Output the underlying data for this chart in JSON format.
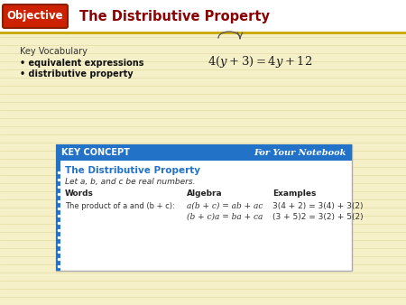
{
  "bg_color": "#f5f0c8",
  "header_bg": "#ffffff",
  "header_line_color": "#c8a000",
  "title_text": "The Distributive Property",
  "title_color": "#8b0000",
  "objective_btn_color": "#cc2200",
  "objective_btn_border": "#8b2000",
  "objective_text": "Objective",
  "objective_text_color": "#ffffff",
  "kv_label": "Key Vocabulary",
  "kv_items": [
    "equivalent expressions",
    "distributive property"
  ],
  "kv_color": "#333333",
  "kv_bold_color": "#111111",
  "box_bg": "#ffffff",
  "box_border_color": "#aaaaaa",
  "box_header_bg": "#2272c8",
  "box_header_text": "KEY CONCEPT",
  "box_header_right": "For Your Notebook",
  "box_title": "The Distributive Property",
  "box_title_color": "#2272c8",
  "box_subtitle": "Let a, b, and c be real numbers.",
  "col_words": "Words",
  "col_algebra": "Algebra",
  "col_examples": "Examples",
  "row1_words": "The product of a and (b + c):",
  "row1_algebra": "a(b + c) = ab + ac",
  "row1_examples": "3(4 + 2) = 3(4) + 3(2)",
  "row2_algebra": "(b + c)a = ba + ca",
  "row2_examples": "(3 + 5)2 = 3(2) + 5(2)",
  "accent_color": "#2272c8",
  "line_colors": [
    "#d4c88a",
    "#d4c88a",
    "#d4c88a",
    "#d4c88a",
    "#d4c88a",
    "#d4c88a",
    "#d4c88a",
    "#d4c88a",
    "#d4c88a",
    "#d4c88a",
    "#d4c88a",
    "#d4c88a",
    "#d4c88a",
    "#d4c88a",
    "#d4c88a",
    "#d4c88a",
    "#d4c88a",
    "#d4c88a",
    "#d4c88a",
    "#d4c88a"
  ]
}
